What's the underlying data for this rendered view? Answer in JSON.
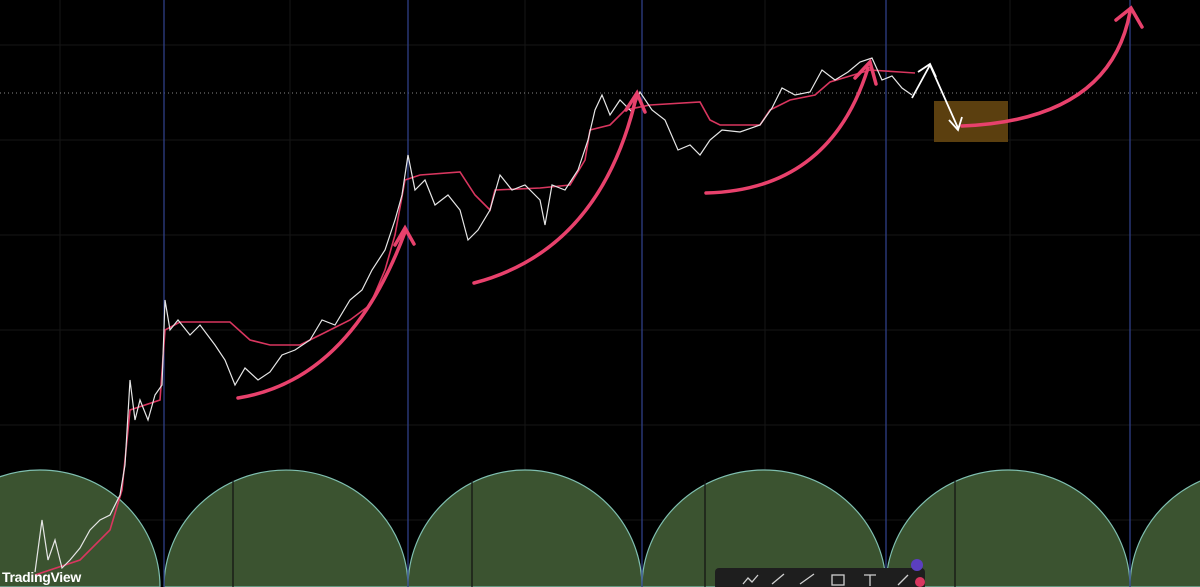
{
  "brand": {
    "watermark": "TradingView"
  }
}
